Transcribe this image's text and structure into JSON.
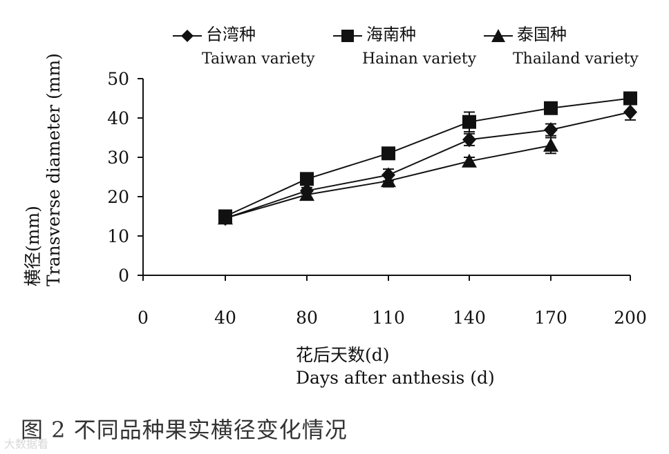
{
  "chart_data": {
    "type": "line",
    "x_categories": [
      "0",
      "40",
      "80",
      "110",
      "140",
      "170",
      "200"
    ],
    "x_values": [
      40,
      80,
      110,
      140,
      170,
      200
    ],
    "series": [
      {
        "name": "台湾种",
        "name_en": "Taiwan variety",
        "marker": "diamond",
        "values": [
          14.5,
          21.5,
          25.5,
          34.5,
          37.0,
          41.5
        ],
        "errors": [
          0.8,
          0.8,
          1.5,
          1.5,
          1.5,
          2.0
        ]
      },
      {
        "name": "海南种",
        "name_en": "Hainan variety",
        "marker": "square",
        "values": [
          15.0,
          24.5,
          31.0,
          39.0,
          42.5,
          45.0
        ],
        "errors": [
          0.6,
          0.8,
          0.8,
          2.5,
          1.0,
          1.0
        ]
      },
      {
        "name": "泰国种",
        "name_en": "Thailand variety",
        "marker": "triangle",
        "values": [
          14.5,
          20.5,
          24.0,
          29.0,
          33.0,
          null
        ],
        "errors": [
          0.6,
          0.8,
          1.5,
          1.0,
          2.0,
          null
        ]
      }
    ],
    "ylim": [
      0,
      50
    ],
    "yticks": [
      0,
      10,
      20,
      30,
      40,
      50
    ],
    "ylabel_cn": "横径(mm)",
    "ylabel_en": "Transverse diameter (mm)",
    "xlabel_cn": "花后天数(d)",
    "xlabel_en": "Days after anthesis (d)",
    "grid": false,
    "legend_position": "top"
  },
  "caption": "图 2 不同品种果实横径变化情况",
  "watermark": "大数据看"
}
